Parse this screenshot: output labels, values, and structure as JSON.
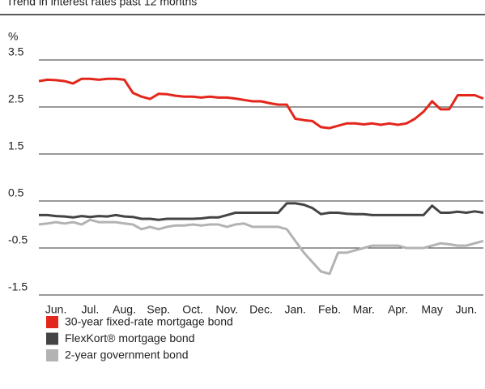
{
  "chart_data": {
    "type": "line",
    "title": "Trend in interest rates past 12 months",
    "y_label": "%",
    "x": [
      -0.5,
      -0.25,
      0,
      0.25,
      0.5,
      0.75,
      1,
      1.25,
      1.5,
      1.75,
      2,
      2.25,
      2.5,
      2.75,
      3,
      3.25,
      3.5,
      3.75,
      4,
      4.25,
      4.5,
      4.75,
      5,
      5.25,
      5.5,
      5.75,
      6,
      6.25,
      6.5,
      6.75,
      7,
      7.25,
      7.5,
      7.75,
      8,
      8.25,
      8.5,
      8.75,
      9,
      9.25,
      9.5,
      9.75,
      10,
      10.25,
      10.5,
      10.75,
      11,
      11.25,
      11.5,
      11.75,
      12,
      12.25,
      12.5
    ],
    "xlim": [
      -0.5,
      12.5
    ],
    "xticks": [
      {
        "value": 0,
        "label": "Jun."
      },
      {
        "value": 1,
        "label": "Jul."
      },
      {
        "value": 2,
        "label": "Aug."
      },
      {
        "value": 3,
        "label": "Sep."
      },
      {
        "value": 4,
        "label": "Oct."
      },
      {
        "value": 5,
        "label": "Nov."
      },
      {
        "value": 6,
        "label": "Dec."
      },
      {
        "value": 7,
        "label": "Jan."
      },
      {
        "value": 8,
        "label": "Feb."
      },
      {
        "value": 9,
        "label": "Mar."
      },
      {
        "value": 10,
        "label": "Apr."
      },
      {
        "value": 11,
        "label": "May"
      },
      {
        "value": 12,
        "label": "Jun."
      }
    ],
    "ylim": [
      -1.5,
      3.5
    ],
    "yticks": [
      -1.5,
      -0.5,
      0.5,
      1.5,
      2.5,
      3.5
    ],
    "grid": true,
    "legend": "bottom-left",
    "series": [
      {
        "name": "30-year fixed-rate mortgage bond",
        "color": "#e3261c",
        "values": [
          3.05,
          3.08,
          3.07,
          3.05,
          3.0,
          3.1,
          3.1,
          3.08,
          3.1,
          3.1,
          3.08,
          2.8,
          2.72,
          2.67,
          2.78,
          2.77,
          2.74,
          2.72,
          2.72,
          2.7,
          2.72,
          2.7,
          2.7,
          2.68,
          2.65,
          2.62,
          2.62,
          2.58,
          2.55,
          2.55,
          2.25,
          2.22,
          2.2,
          2.07,
          2.05,
          2.1,
          2.15,
          2.15,
          2.13,
          2.15,
          2.12,
          2.15,
          2.12,
          2.15,
          2.25,
          2.4,
          2.62,
          2.45,
          2.45,
          2.75,
          2.75,
          2.75,
          2.68
        ]
      },
      {
        "name": "FlexKort® mortgage bond",
        "color": "#444444",
        "values": [
          0.2,
          0.2,
          0.18,
          0.17,
          0.15,
          0.18,
          0.16,
          0.18,
          0.17,
          0.2,
          0.17,
          0.16,
          0.12,
          0.12,
          0.1,
          0.12,
          0.12,
          0.12,
          0.12,
          0.13,
          0.15,
          0.15,
          0.2,
          0.25,
          0.25,
          0.25,
          0.25,
          0.25,
          0.25,
          0.45,
          0.45,
          0.42,
          0.35,
          0.22,
          0.25,
          0.25,
          0.23,
          0.22,
          0.22,
          0.2,
          0.2,
          0.2,
          0.2,
          0.2,
          0.2,
          0.2,
          0.4,
          0.25,
          0.25,
          0.27,
          0.25,
          0.28,
          0.25
        ]
      },
      {
        "name": "2-year government bond",
        "color": "#b3b3b3",
        "values": [
          0,
          0.02,
          0.05,
          0.02,
          0.05,
          0,
          0.1,
          0.05,
          0.05,
          0.05,
          0.02,
          0,
          -0.1,
          -0.05,
          -0.1,
          -0.05,
          -0.02,
          -0.02,
          0,
          -0.02,
          0,
          0,
          -0.05,
          0,
          0.02,
          -0.05,
          -0.05,
          -0.05,
          -0.05,
          -0.1,
          -0.35,
          -0.6,
          -0.8,
          -1.0,
          -1.05,
          -0.6,
          -0.6,
          -0.55,
          -0.5,
          -0.45,
          -0.45,
          -0.45,
          -0.45,
          -0.5,
          -0.5,
          -0.5,
          -0.45,
          -0.4,
          -0.42,
          -0.45,
          -0.45,
          -0.4,
          -0.35
        ]
      }
    ]
  }
}
